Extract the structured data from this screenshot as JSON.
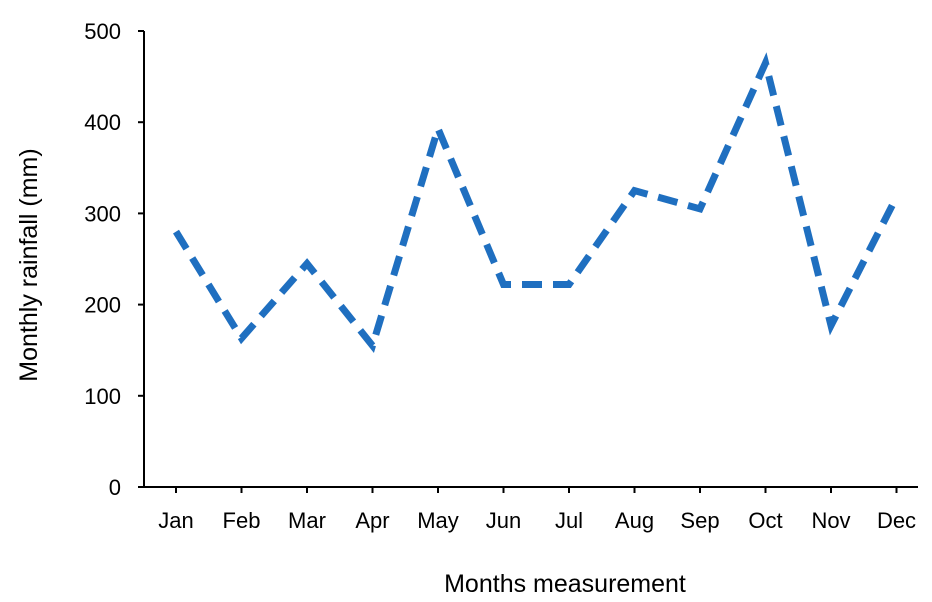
{
  "chart_data": {
    "type": "line",
    "categories": [
      "Jan",
      "Feb",
      "Mar",
      "Apr",
      "May",
      "Jun",
      "Jul",
      "Aug",
      "Sep",
      "Oct",
      "Nov",
      "Dec"
    ],
    "series": [
      {
        "values": [
          280,
          163,
          245,
          155,
          393,
          222,
          222,
          325,
          305,
          465,
          177,
          318
        ],
        "color": "#1F6FC0",
        "line_style": "dashed"
      }
    ],
    "xlabel": "Months measurement",
    "ylabel": "Monthly rainfall (mm)",
    "ylim": [
      0,
      500
    ],
    "yticks": [
      0,
      100,
      200,
      300,
      400,
      500
    ],
    "grid": false,
    "legend": "none"
  }
}
